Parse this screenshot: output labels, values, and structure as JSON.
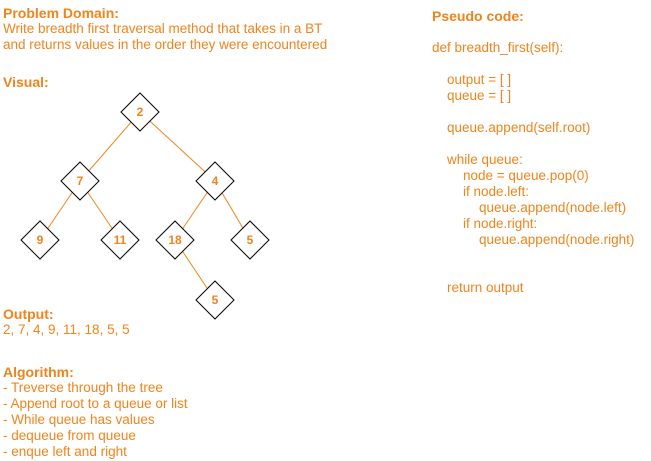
{
  "problem": {
    "heading": "Problem Domain:",
    "lines": [
      "Write breadth first traversal method that takes in a BT",
      "and returns values in the order they were encountered"
    ]
  },
  "visual": {
    "heading": "Visual:"
  },
  "tree": {
    "nodes": [
      {
        "id": "n1",
        "label": "2"
      },
      {
        "id": "n2",
        "label": "7"
      },
      {
        "id": "n3",
        "label": "4"
      },
      {
        "id": "n4",
        "label": "9"
      },
      {
        "id": "n5",
        "label": "11"
      },
      {
        "id": "n6",
        "label": "18"
      },
      {
        "id": "n7",
        "label": "5"
      },
      {
        "id": "n8",
        "label": "5"
      }
    ],
    "edges": [
      [
        "n1",
        "n2"
      ],
      [
        "n1",
        "n3"
      ],
      [
        "n2",
        "n4"
      ],
      [
        "n2",
        "n5"
      ],
      [
        "n3",
        "n6"
      ],
      [
        "n3",
        "n7"
      ],
      [
        "n6",
        "n8"
      ]
    ],
    "colors": {
      "node_border": "#000000",
      "edge": "#f0841c",
      "text": "#f0841c"
    }
  },
  "output": {
    "heading": "Output:",
    "value": "2, 7, 4, 9, 11, 18, 5, 5"
  },
  "algorithm": {
    "heading": "Algorithm:",
    "steps": [
      "- Treverse through the tree",
      "- Append root to a queue or list",
      "- While queue has values",
      "- dequeue from queue",
      "- enque left and right"
    ]
  },
  "pseudo": {
    "heading": "Pseudo code:",
    "lines": [
      "def breadth_first(self):",
      "output = [ ]",
      "queue = [ ]",
      "queue.append(self.root)",
      "while queue:",
      "node = queue.pop(0)",
      "if node.left:",
      "queue.append(node.left)",
      "if node.right:",
      "queue.append(node.right)",
      "return output"
    ]
  },
  "accent_color": "#f0841c"
}
